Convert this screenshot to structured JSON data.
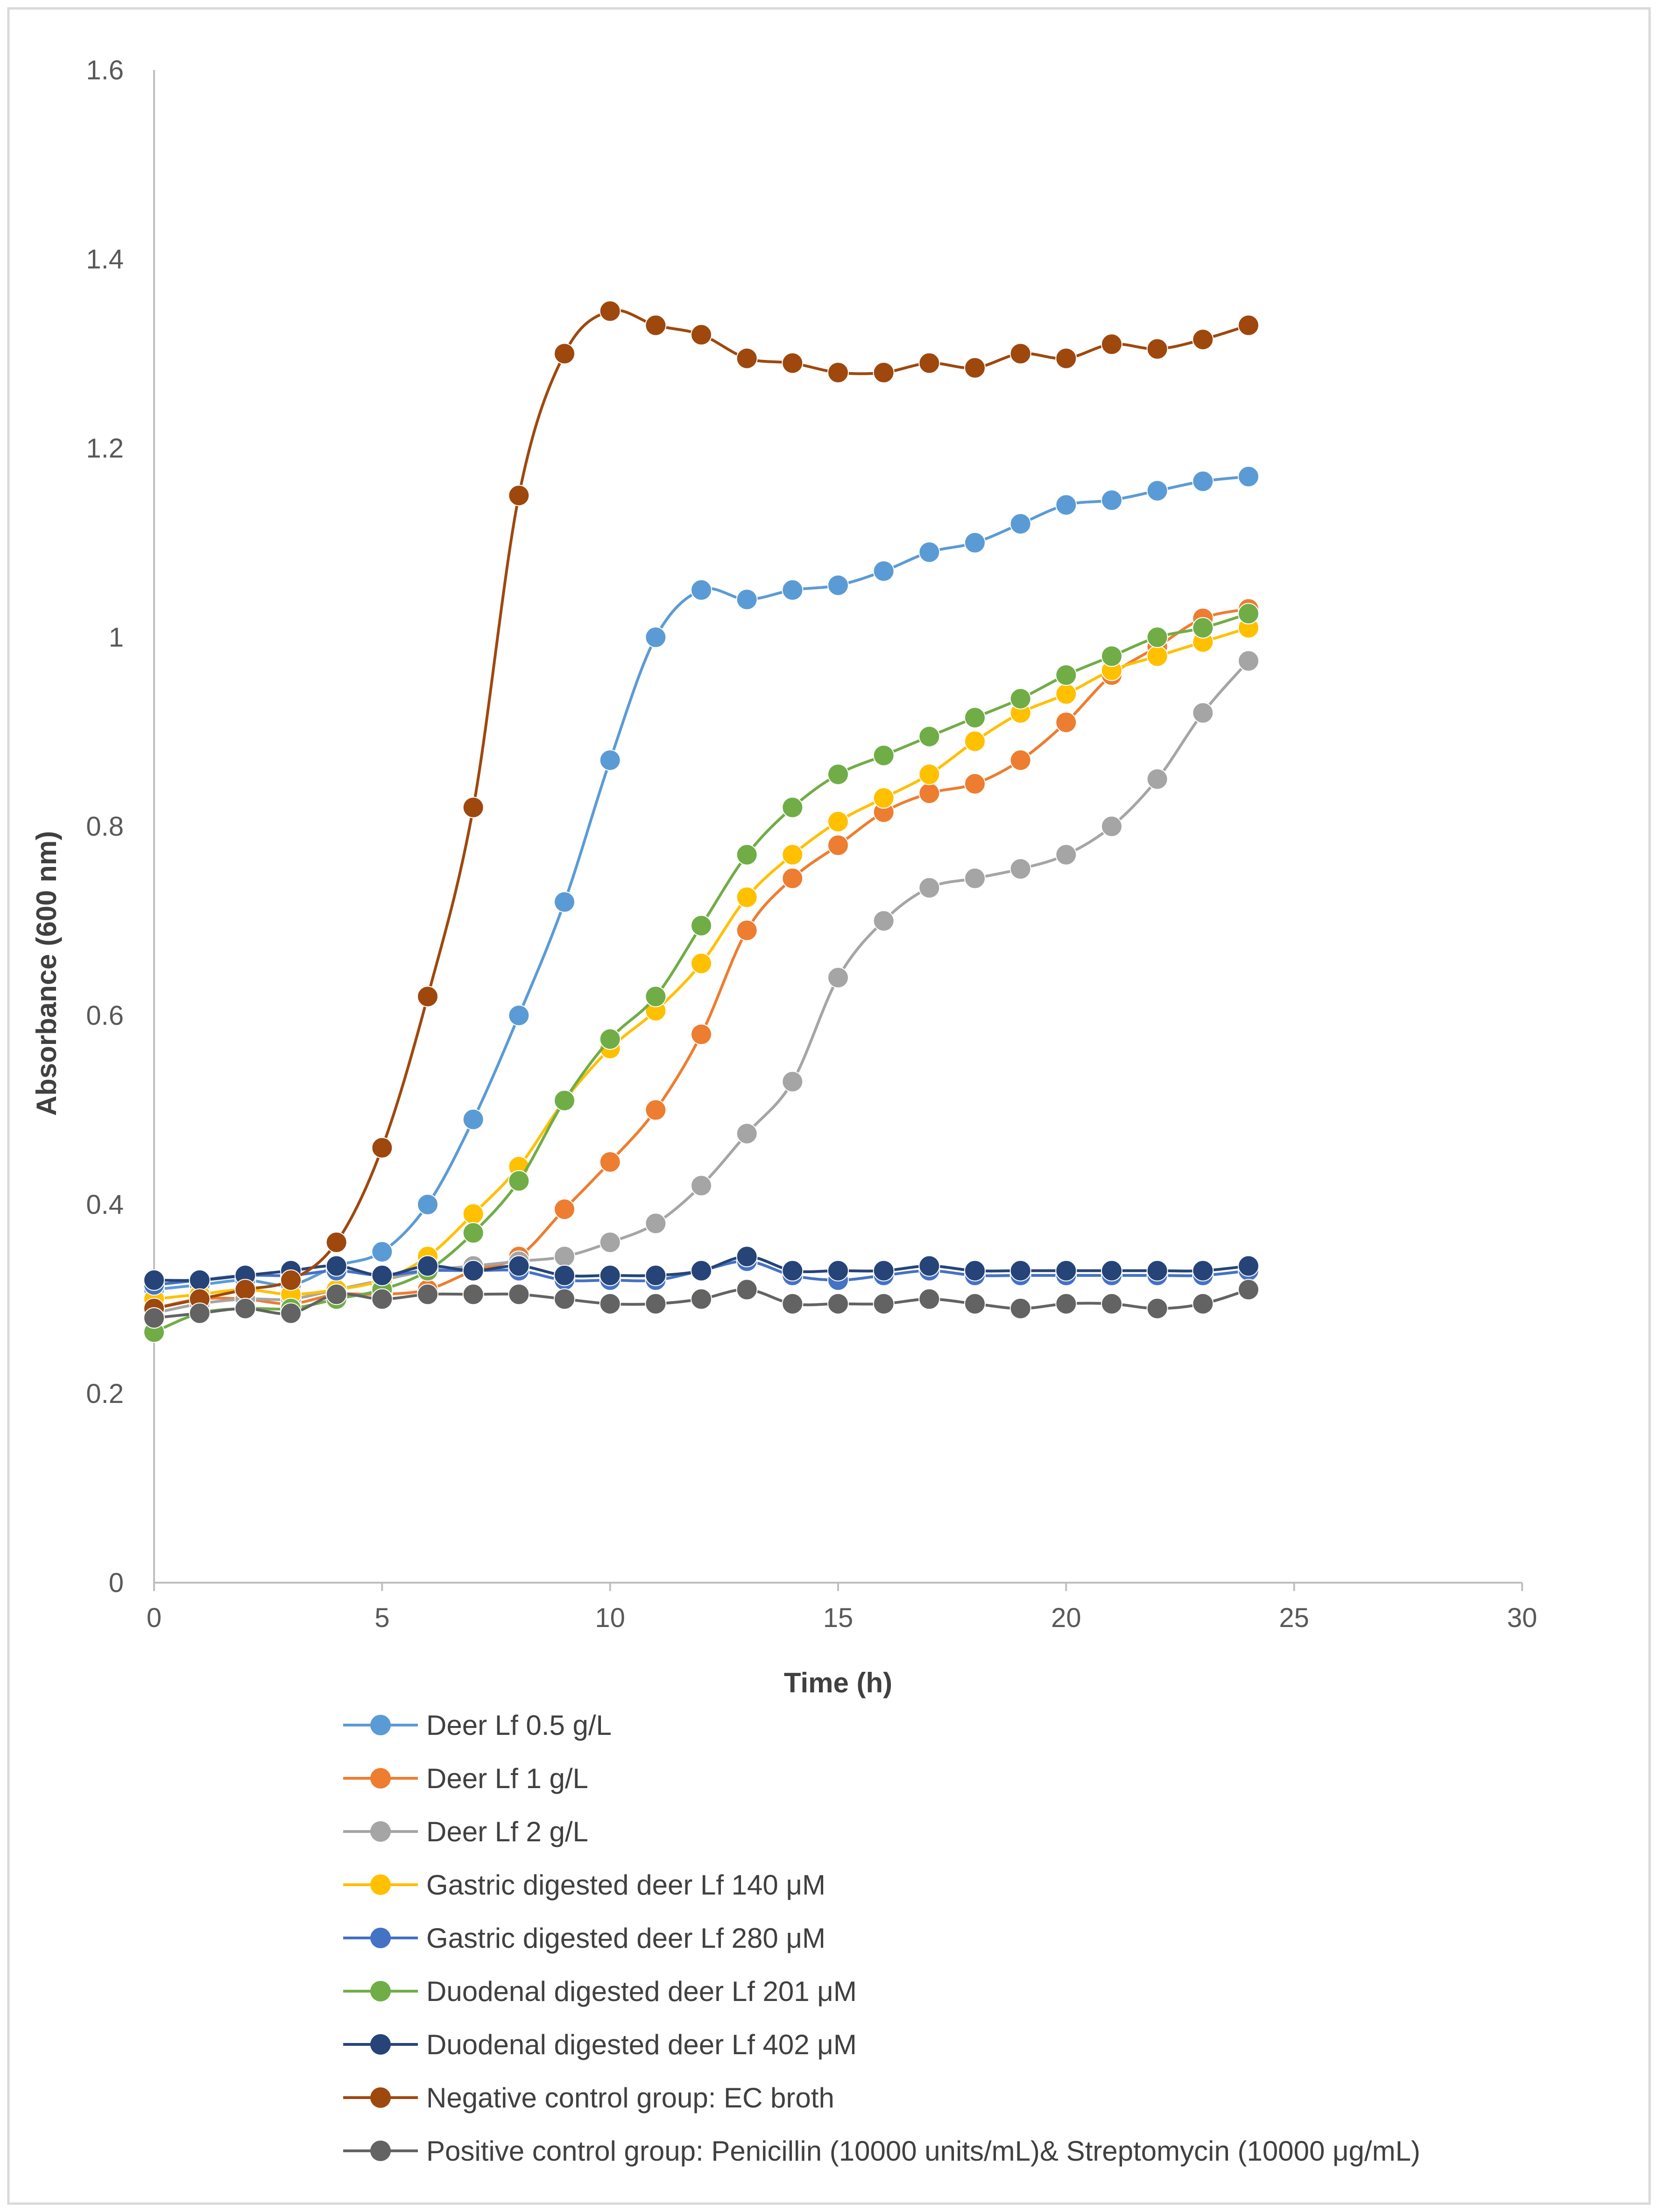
{
  "chart_data": {
    "type": "line",
    "title": "",
    "xlabel": "Time (h)",
    "ylabel": "Absorbance (600 nm)",
    "xlim": [
      0,
      30
    ],
    "ylim": [
      0,
      1.6
    ],
    "xticks": [
      0,
      5,
      10,
      15,
      20,
      25,
      30
    ],
    "yticks": [
      0,
      0.2,
      0.4,
      0.6,
      0.8,
      1,
      1.2,
      1.4,
      1.6
    ],
    "ytick_labels": [
      "0",
      "0.2",
      "0.4",
      "0.6",
      "0.8",
      "1",
      "1.2",
      "1.4",
      "1.6"
    ],
    "grid": false,
    "legend_position": "bottom",
    "x": [
      0,
      1,
      2,
      3,
      4,
      5,
      6,
      7,
      8,
      9,
      10,
      11,
      12,
      13,
      14,
      15,
      16,
      17,
      18,
      19,
      20,
      21,
      22,
      23,
      24
    ],
    "series": [
      {
        "name": "Deer Lf 0.5 g/L",
        "color": "#5B9BD5",
        "values": [
          0.31,
          0.315,
          0.32,
          0.315,
          0.335,
          0.35,
          0.4,
          0.49,
          0.6,
          0.72,
          0.87,
          1.0,
          1.05,
          1.04,
          1.05,
          1.055,
          1.07,
          1.09,
          1.1,
          1.12,
          1.14,
          1.145,
          1.155,
          1.165,
          1.17
        ]
      },
      {
        "name": "Deer Lf 1 g/L",
        "color": "#ED7D31",
        "values": [
          0.29,
          0.3,
          0.3,
          0.295,
          0.305,
          0.305,
          0.31,
          0.33,
          0.345,
          0.395,
          0.445,
          0.5,
          0.58,
          0.69,
          0.745,
          0.78,
          0.815,
          0.835,
          0.845,
          0.87,
          0.91,
          0.96,
          0.99,
          1.02,
          1.03
        ]
      },
      {
        "name": "Deer Lf 2 g/L",
        "color": "#A5A5A5",
        "values": [
          0.285,
          0.295,
          0.3,
          0.3,
          0.31,
          0.32,
          0.33,
          0.335,
          0.34,
          0.345,
          0.36,
          0.38,
          0.42,
          0.475,
          0.53,
          0.64,
          0.7,
          0.735,
          0.745,
          0.755,
          0.77,
          0.8,
          0.85,
          0.92,
          0.975
        ]
      },
      {
        "name": "Gastric digested deer Lf 140 μM",
        "color": "#FFC000",
        "values": [
          0.3,
          0.305,
          0.31,
          0.305,
          0.31,
          0.32,
          0.345,
          0.39,
          0.44,
          0.51,
          0.565,
          0.605,
          0.655,
          0.725,
          0.77,
          0.805,
          0.83,
          0.855,
          0.89,
          0.92,
          0.94,
          0.965,
          0.98,
          0.995,
          1.01
        ]
      },
      {
        "name": "Gastric digested deer Lf 280 μM",
        "color": "#4472C4",
        "values": [
          0.315,
          0.32,
          0.325,
          0.325,
          0.33,
          0.325,
          0.33,
          0.33,
          0.33,
          0.32,
          0.32,
          0.32,
          0.33,
          0.34,
          0.325,
          0.32,
          0.325,
          0.33,
          0.325,
          0.325,
          0.325,
          0.325,
          0.325,
          0.325,
          0.33
        ]
      },
      {
        "name": "Duodenal digested deer Lf 201 μM",
        "color": "#70AD47",
        "values": [
          0.265,
          0.285,
          0.29,
          0.29,
          0.3,
          0.31,
          0.33,
          0.37,
          0.425,
          0.51,
          0.575,
          0.62,
          0.695,
          0.77,
          0.82,
          0.855,
          0.875,
          0.895,
          0.915,
          0.935,
          0.96,
          0.98,
          1.0,
          1.01,
          1.025
        ]
      },
      {
        "name": "Duodenal digested deer Lf 402 μM",
        "color": "#264478",
        "values": [
          0.32,
          0.32,
          0.325,
          0.33,
          0.335,
          0.325,
          0.335,
          0.33,
          0.335,
          0.325,
          0.325,
          0.325,
          0.33,
          0.345,
          0.33,
          0.33,
          0.33,
          0.335,
          0.33,
          0.33,
          0.33,
          0.33,
          0.33,
          0.33,
          0.335
        ]
      },
      {
        "name": "Negative control group: EC broth",
        "color": "#9E480E",
        "values": [
          0.29,
          0.3,
          0.31,
          0.32,
          0.36,
          0.46,
          0.62,
          0.82,
          1.15,
          1.3,
          1.345,
          1.33,
          1.32,
          1.295,
          1.29,
          1.28,
          1.28,
          1.29,
          1.285,
          1.3,
          1.295,
          1.31,
          1.305,
          1.315,
          1.33
        ]
      },
      {
        "name": "Positive control group: Penicillin (10000 units/mL)& Streptomycin (10000 μg/mL)",
        "color": "#636363",
        "values": [
          0.28,
          0.285,
          0.29,
          0.285,
          0.305,
          0.3,
          0.305,
          0.305,
          0.305,
          0.3,
          0.295,
          0.295,
          0.3,
          0.31,
          0.295,
          0.295,
          0.295,
          0.3,
          0.295,
          0.29,
          0.295,
          0.295,
          0.29,
          0.295,
          0.31
        ]
      }
    ]
  }
}
